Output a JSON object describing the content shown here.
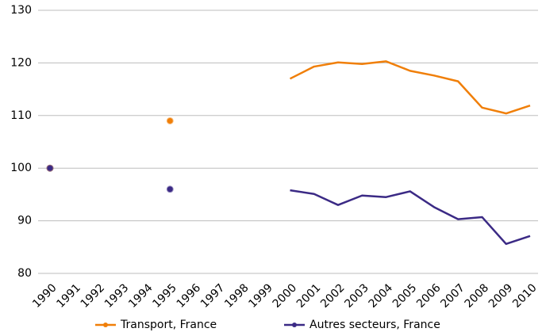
{
  "chart_data": {
    "type": "line",
    "categories": [
      "1990",
      "1991",
      "1992",
      "1993",
      "1994",
      "1995",
      "1996",
      "1997",
      "1998",
      "1999",
      "2000",
      "2001",
      "2002",
      "2003",
      "2004",
      "2005",
      "2006",
      "2007",
      "2008",
      "2009",
      "2010"
    ],
    "series": [
      {
        "name": "Transport, France",
        "color": "#f07f09",
        "values": [
          100,
          null,
          null,
          null,
          null,
          109,
          null,
          null,
          null,
          null,
          117,
          119.3,
          120.1,
          119.8,
          120.3,
          118.5,
          117.6,
          116.5,
          111.5,
          110.4,
          111.9
        ]
      },
      {
        "name": "Autres secteurs, France",
        "color": "#3b2a85",
        "values": [
          100,
          null,
          null,
          null,
          null,
          96,
          null,
          null,
          null,
          null,
          95.8,
          95.1,
          93,
          94.8,
          94.5,
          95.6,
          92.6,
          90.3,
          90.7,
          85.6,
          87.1
        ]
      }
    ],
    "ylim": [
      80,
      130
    ],
    "yticks": [
      80,
      90,
      100,
      110,
      120,
      130
    ],
    "grid": true,
    "legend": "bottom"
  }
}
